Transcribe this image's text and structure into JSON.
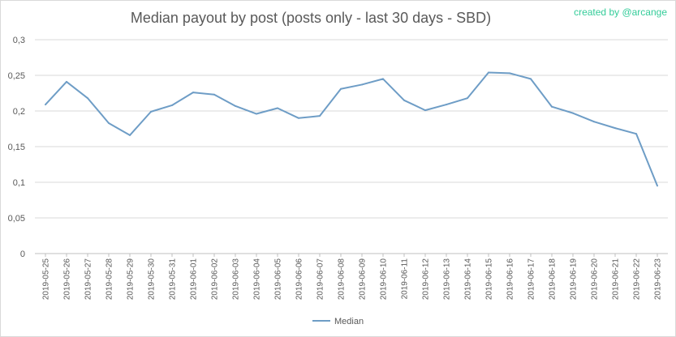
{
  "chart_data": {
    "type": "line",
    "title": "Median payout by post (posts only - last 30 days - SBD)",
    "credit": "created by @arcange",
    "xlabel": "",
    "ylabel": "",
    "ylim": [
      0,
      0.3
    ],
    "yticks": [
      "0",
      "0,05",
      "0,1",
      "0,15",
      "0,2",
      "0,25",
      "0,3"
    ],
    "grid": true,
    "legend_position": "bottom",
    "x": [
      "2019-05-25",
      "2019-05-26",
      "2019-05-27",
      "2019-05-28",
      "2019-05-29",
      "2019-05-30",
      "2019-05-31",
      "2019-06-01",
      "2019-06-02",
      "2019-06-03",
      "2019-06-04",
      "2019-06-05",
      "2019-06-06",
      "2019-06-07",
      "2019-06-08",
      "2019-06-09",
      "2019-06-10",
      "2019-06-11",
      "2019-06-12",
      "2019-06-13",
      "2019-06-14",
      "2019-06-15",
      "2019-06-16",
      "2019-06-17",
      "2019-06-18",
      "2019-06-19",
      "2019-06-20",
      "2019-06-21",
      "2019-06-22",
      "2019-06-23"
    ],
    "series": [
      {
        "name": "Median",
        "color": "#6e9dc6",
        "values": [
          0.209,
          0.241,
          0.218,
          0.183,
          0.166,
          0.199,
          0.208,
          0.226,
          0.223,
          0.207,
          0.196,
          0.204,
          0.19,
          0.193,
          0.231,
          0.237,
          0.245,
          0.215,
          0.201,
          0.209,
          0.218,
          0.254,
          0.253,
          0.245,
          0.206,
          0.197,
          0.185,
          0.176,
          0.168,
          0.095
        ]
      }
    ]
  },
  "colors": {
    "credit": "#33cc99",
    "grid": "#d9d9d9",
    "text": "#595959"
  }
}
